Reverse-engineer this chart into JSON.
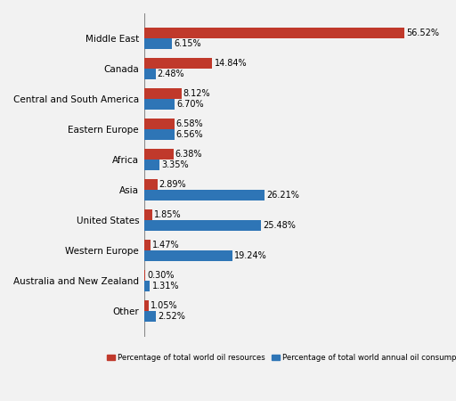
{
  "categories": [
    "Middle East",
    "Canada",
    "Central and South America",
    "Eastern Europe",
    "Africa",
    "Asia",
    "United States",
    "Western Europe",
    "Australia and New Zealand",
    "Other"
  ],
  "resources": [
    56.52,
    14.84,
    8.12,
    6.58,
    6.38,
    2.89,
    1.85,
    1.47,
    0.3,
    1.05
  ],
  "consumption": [
    6.15,
    2.48,
    6.7,
    6.56,
    3.35,
    26.21,
    25.48,
    19.24,
    1.31,
    2.52
  ],
  "resource_color": "#c0392b",
  "consumption_color": "#2e75b6",
  "background_color": "#f2f2f2",
  "bar_height": 0.35,
  "xlim": [
    0,
    63
  ],
  "legend_resource": "Percentage of total world oil resources",
  "legend_consumption": "Percentage of total world annual oil consumption",
  "label_fontsize": 7.0,
  "tick_fontsize": 7.5
}
